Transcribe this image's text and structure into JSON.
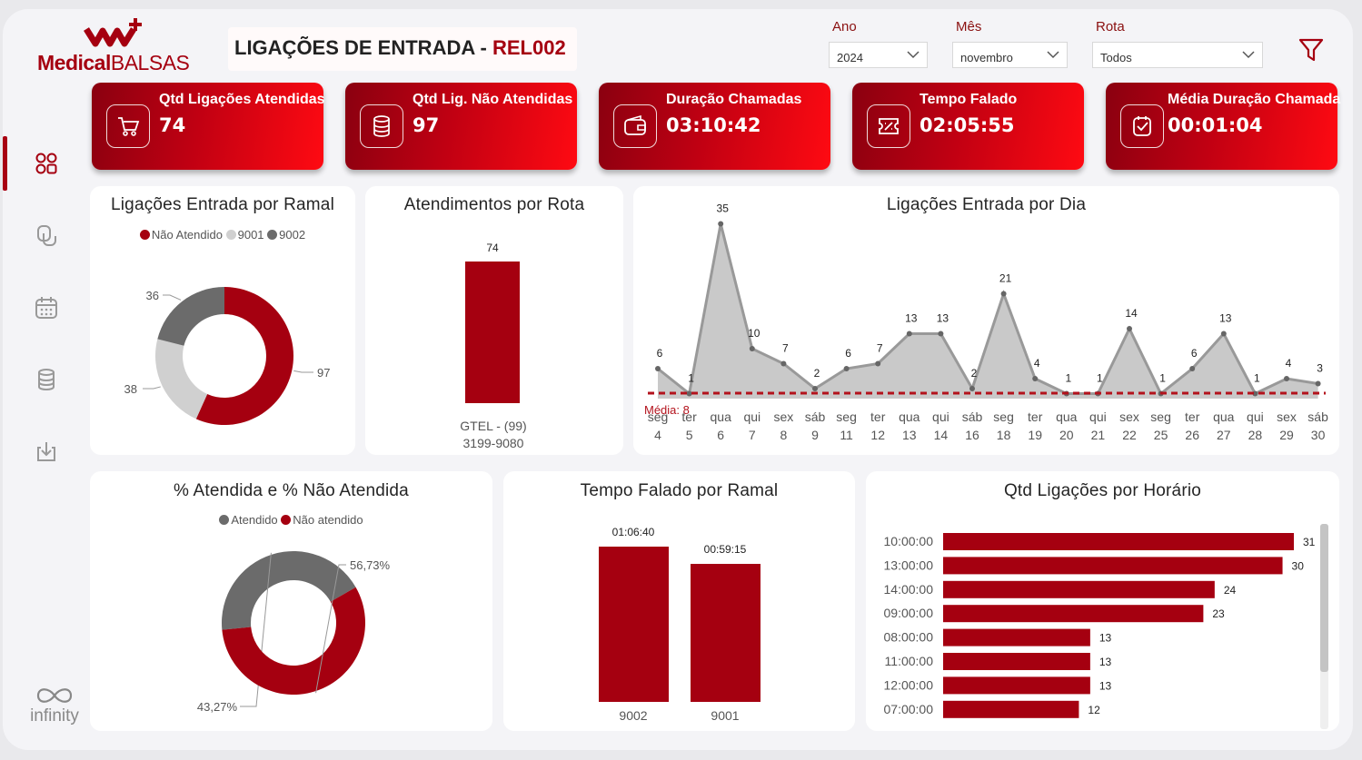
{
  "logo": {
    "brand": "Medical",
    "brand2": "BALSAS"
  },
  "header": {
    "title": "LIGAÇÕES DE ENTRADA - ",
    "code": "REL002"
  },
  "filters": [
    {
      "label": "Ano",
      "value": "2024"
    },
    {
      "label": "Mês",
      "value": "novembro"
    },
    {
      "label": "Rota",
      "value": "Todos"
    }
  ],
  "kpis": [
    {
      "label": "Qtd Ligações Atendidas",
      "value": "74",
      "icon": "cart-icon"
    },
    {
      "label": "Qtd Lig. Não Atendidas",
      "value": "97",
      "icon": "database-icon"
    },
    {
      "label": "Duração Chamadas",
      "value": "03:10:42",
      "icon": "wallet-icon"
    },
    {
      "label": "Tempo Falado",
      "value": "02:05:55",
      "icon": "ticket-icon"
    },
    {
      "label": "Média Duração Chamada",
      "value": "00:01:04",
      "icon": "check-icon"
    }
  ],
  "sidebar": {
    "items": [
      "apps-icon",
      "copy-icon",
      "calendar-icon",
      "database-icon",
      "download-icon"
    ],
    "footer": "infinity"
  },
  "colors": {
    "red": "#a50010",
    "lightgray": "#d0d0d0",
    "darkgray": "#6b6b6b",
    "area": "#c9c9c9"
  },
  "chart_data": [
    {
      "type": "pie",
      "title": "Ligações Entrada por Ramal",
      "legend": [
        "Não Atendido",
        "9001",
        "9002"
      ],
      "values": [
        97,
        38,
        36
      ],
      "labels": [
        "97",
        "38",
        "36"
      ]
    },
    {
      "type": "bar",
      "title": "Atendimentos por Rota",
      "categories": [
        "GTEL - (99) 3199-9080"
      ],
      "category_lines": [
        [
          "GTEL - (99)",
          "3199-9080"
        ]
      ],
      "values": [
        74
      ]
    },
    {
      "type": "area",
      "title": "Ligações Entrada por Dia",
      "x": [
        [
          "seg",
          "4"
        ],
        [
          "ter",
          "5"
        ],
        [
          "qua",
          "6"
        ],
        [
          "qui",
          "7"
        ],
        [
          "sex",
          "8"
        ],
        [
          "sáb",
          "9"
        ],
        [
          "seg",
          "11"
        ],
        [
          "ter",
          "12"
        ],
        [
          "qua",
          "13"
        ],
        [
          "qui",
          "14"
        ],
        [
          "sáb",
          "16"
        ],
        [
          "seg",
          "18"
        ],
        [
          "ter",
          "19"
        ],
        [
          "qua",
          "20"
        ],
        [
          "qui",
          "21"
        ],
        [
          "sex",
          "22"
        ],
        [
          "seg",
          "25"
        ],
        [
          "ter",
          "26"
        ],
        [
          "qua",
          "27"
        ],
        [
          "qui",
          "28"
        ],
        [
          "sex",
          "29"
        ],
        [
          "sáb",
          "30"
        ]
      ],
      "values": [
        6,
        1,
        35,
        10,
        7,
        2,
        6,
        7,
        13,
        13,
        2,
        21,
        4,
        1,
        1,
        14,
        1,
        6,
        13,
        1,
        4,
        3
      ],
      "average_label": "Média: 8",
      "average": 8
    },
    {
      "type": "pie",
      "title": "% Atendida e % Não Atendida",
      "legend": [
        "Atendido",
        "Não atendido"
      ],
      "values": [
        43.27,
        56.73
      ],
      "labels": [
        "43,27%",
        "56,73%"
      ]
    },
    {
      "type": "bar",
      "title": "Tempo Falado por Ramal",
      "categories": [
        "9002",
        "9001"
      ],
      "values_seconds": [
        4000,
        3555
      ],
      "labels": [
        "01:06:40",
        "00:59:15"
      ]
    },
    {
      "type": "bar",
      "title": "Qtd Ligações por Horário",
      "orientation": "horizontal",
      "categories": [
        "10:00:00",
        "13:00:00",
        "14:00:00",
        "09:00:00",
        "08:00:00",
        "11:00:00",
        "12:00:00",
        "07:00:00"
      ],
      "values": [
        31,
        30,
        24,
        23,
        13,
        13,
        13,
        12
      ]
    }
  ]
}
